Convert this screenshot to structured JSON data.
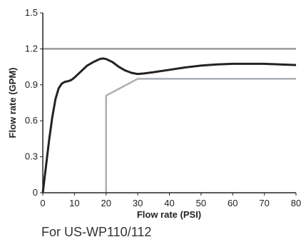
{
  "chart_data": {
    "type": "line",
    "title": "",
    "xlabel": "Flow rate (PSI)",
    "ylabel": "Flow rate (GPM)",
    "xlim": [
      0,
      80
    ],
    "ylim": [
      0,
      1.5
    ],
    "x_ticks": [
      "0",
      "10",
      "20",
      "30",
      "40",
      "50",
      "60",
      "70",
      "80"
    ],
    "y_ticks": [
      "0",
      "0.3",
      "0.6",
      "0.9",
      "1.2",
      "1.5"
    ],
    "grid": false,
    "series": [
      {
        "color": "#222222",
        "x": [
          0,
          1,
          2,
          3,
          4,
          5,
          6,
          7,
          8,
          9,
          10,
          12,
          14,
          16,
          18,
          19,
          20,
          22,
          24,
          26,
          28,
          30,
          32,
          35,
          40,
          45,
          50,
          55,
          60,
          65,
          70,
          75,
          80
        ],
        "y": [
          0,
          0.22,
          0.44,
          0.63,
          0.78,
          0.87,
          0.91,
          0.925,
          0.93,
          0.94,
          0.96,
          1.01,
          1.06,
          1.09,
          1.115,
          1.12,
          1.115,
          1.09,
          1.05,
          1.02,
          1.0,
          0.99,
          0.995,
          1.005,
          1.025,
          1.045,
          1.06,
          1.07,
          1.075,
          1.075,
          1.075,
          1.07,
          1.065
        ]
      },
      {
        "color": "#999999",
        "x": [
          0,
          80
        ],
        "y": [
          1.2,
          1.2
        ]
      },
      {
        "color": "#aab0b5",
        "x": [
          20,
          20,
          30,
          80
        ],
        "y": [
          0,
          0.81,
          0.95,
          0.95
        ]
      }
    ]
  },
  "caption": "For US-WP110/112"
}
